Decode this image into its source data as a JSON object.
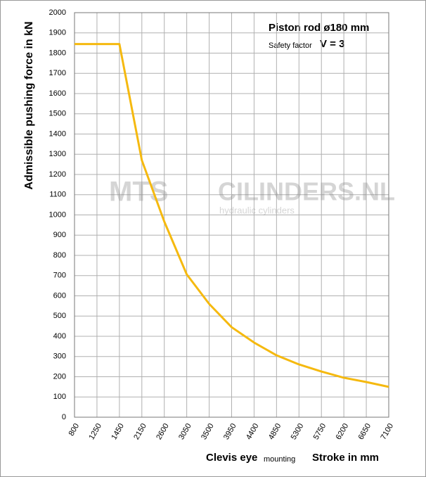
{
  "chart_data": {
    "type": "line",
    "y_label": "Admissible pushing  force in kN",
    "x_label_main": "Clevis eye",
    "x_label_small": "mounting",
    "x_label_unit": "Stroke in mm",
    "annotation_rod": "Piston rod ø180 mm",
    "annotation_safety": "Safety factor",
    "annotation_v": "V = 3",
    "watermark_brand": "MTS",
    "watermark_site": "CILINDERS.NL",
    "watermark_sub": "hydraulic  cylinders",
    "categories": [
      "800",
      "1250",
      "1450",
      "2150",
      "2600",
      "3050",
      "3500",
      "3950",
      "4400",
      "4850",
      "5300",
      "5750",
      "6200",
      "6650",
      "7100"
    ],
    "series": [
      {
        "name": "Admissible pushing force",
        "color": "#f5b90f",
        "values": [
          1845,
          1845,
          1845,
          1270,
          967,
          706,
          560,
          445,
          369,
          306,
          261,
          226,
          195,
          174,
          150
        ]
      }
    ],
    "ylim": [
      0,
      2000
    ],
    "yticks": [
      0,
      100,
      200,
      300,
      400,
      500,
      600,
      700,
      800,
      900,
      1000,
      1100,
      1200,
      1300,
      1400,
      1500,
      1600,
      1700,
      1800,
      1900,
      2000
    ],
    "grid": true
  }
}
